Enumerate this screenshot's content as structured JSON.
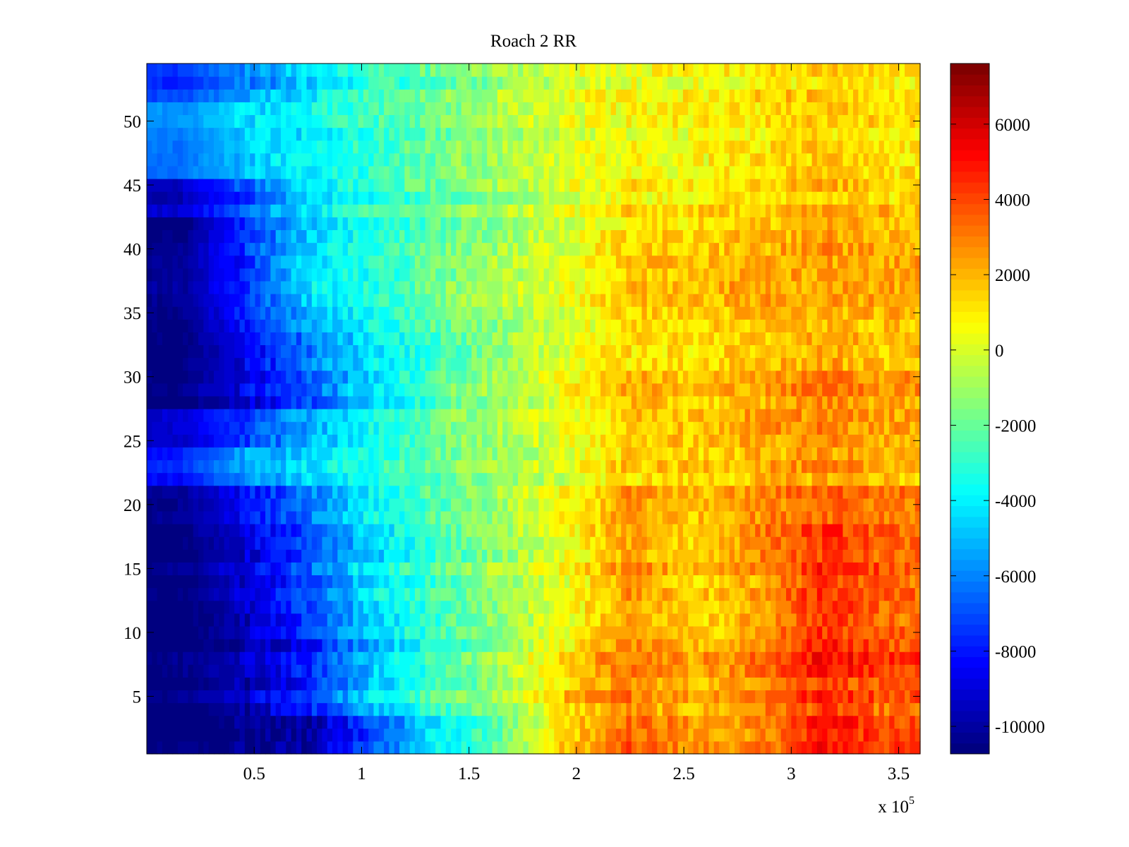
{
  "chart_data": {
    "type": "heatmap",
    "title": "Roach 2 RR",
    "xlabel": "",
    "ylabel": "",
    "x_exponent_label": "x 10",
    "x_exponent_power": "5",
    "xlim": [
      0,
      360000
    ],
    "ylim": [
      0.5,
      54.5
    ],
    "clim": [
      -10730,
      7610
    ],
    "colormap": "jet",
    "xticks": [
      50000,
      100000,
      150000,
      200000,
      250000,
      300000,
      350000
    ],
    "xtick_labels": [
      "0.5",
      "1",
      "1.5",
      "2",
      "2.5",
      "3",
      "3.5"
    ],
    "yticks": [
      5,
      10,
      15,
      20,
      25,
      30,
      35,
      40,
      45,
      50
    ],
    "ytick_labels": [
      "5",
      "10",
      "15",
      "20",
      "25",
      "30",
      "35",
      "40",
      "45",
      "50"
    ],
    "colorbar_ticks": [
      -10000,
      -8000,
      -6000,
      -4000,
      -2000,
      0,
      2000,
      4000,
      6000
    ],
    "colorbar_tick_labels": [
      "-10000",
      "-8000",
      "-6000",
      "-4000",
      "-2000",
      "0",
      "2000",
      "4000",
      "6000"
    ],
    "n_rows": 54,
    "rows_per_group": 3,
    "x_bin_centers": [
      15000,
      45000,
      75000,
      105000,
      135000,
      165000,
      195000,
      225000,
      255000,
      285000,
      315000,
      345000
    ],
    "row_group_values": [
      [
        -10700,
        -10600,
        -10000,
        -7000,
        -4000,
        -2000,
        1500,
        3500,
        2500,
        2800,
        5000,
        4000
      ],
      [
        -10700,
        -9500,
        -7500,
        -4500,
        -2500,
        -1000,
        1500,
        3000,
        2000,
        3000,
        4500,
        3500
      ],
      [
        -10700,
        -10000,
        -8000,
        -5000,
        -3000,
        -1000,
        1000,
        3000,
        2000,
        3000,
        5000,
        4000
      ],
      [
        -10700,
        -9500,
        -7000,
        -4500,
        -2500,
        -1000,
        500,
        2500,
        1500,
        2500,
        4500,
        3500
      ],
      [
        -10700,
        -9000,
        -7000,
        -4000,
        -2500,
        -1000,
        500,
        2500,
        1500,
        2500,
        4500,
        3500
      ],
      [
        -10700,
        -9000,
        -7000,
        -4500,
        -2500,
        -1000,
        500,
        2500,
        1500,
        3000,
        4500,
        3500
      ],
      [
        -10500,
        -8500,
        -6500,
        -4000,
        -2500,
        -1000,
        500,
        2500,
        1500,
        2500,
        3500,
        3000
      ],
      [
        -8000,
        -5500,
        -4300,
        -3500,
        -2000,
        -1000,
        0,
        1500,
        1500,
        2000,
        2500,
        2000
      ],
      [
        -9500,
        -7500,
        -5500,
        -4000,
        -2000,
        -1000,
        0,
        1500,
        1500,
        2000,
        2500,
        2000
      ],
      [
        -10700,
        -9000,
        -7000,
        -4500,
        -2500,
        -1000,
        500,
        2000,
        1500,
        2000,
        3000,
        2500
      ],
      [
        -10500,
        -8500,
        -6000,
        -4000,
        -2500,
        -1000,
        500,
        1500,
        1500,
        2000,
        2500,
        2000
      ],
      [
        -10500,
        -8000,
        -5000,
        -3500,
        -2000,
        -1000,
        0,
        1500,
        1500,
        2000,
        2000,
        2000
      ],
      [
        -10500,
        -8000,
        -4500,
        -3500,
        -2000,
        -1000,
        0,
        1500,
        1500,
        2000,
        2000,
        2000
      ],
      [
        -10500,
        -7500,
        -4500,
        -3000,
        -2000,
        -1000,
        0,
        1500,
        1500,
        2000,
        2500,
        2000
      ],
      [
        -9500,
        -7000,
        -4500,
        -3000,
        -2000,
        -1000,
        0,
        1000,
        1000,
        1500,
        2000,
        1500
      ],
      [
        -6500,
        -5000,
        -4000,
        -3000,
        -2000,
        -1000,
        0,
        500,
        500,
        1000,
        1500,
        1000
      ],
      [
        -6000,
        -4500,
        -4000,
        -3000,
        -2000,
        -1000,
        0,
        500,
        500,
        1000,
        1500,
        1000
      ],
      [
        -7500,
        -6000,
        -4500,
        -3000,
        -2000,
        -1000,
        0,
        500,
        500,
        1000,
        1500,
        1000
      ]
    ]
  }
}
